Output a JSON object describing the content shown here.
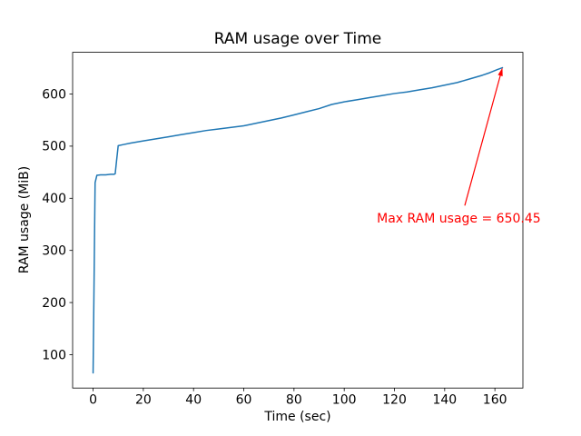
{
  "chart_data": {
    "type": "line",
    "title": "RAM usage over Time",
    "xlabel": "Time (sec)",
    "ylabel": "RAM usage (MiB)",
    "xlim": [
      -8.15,
      171.15
    ],
    "ylim": [
      36,
      680
    ],
    "xticks": [
      0,
      20,
      40,
      60,
      80,
      100,
      120,
      140,
      160
    ],
    "yticks": [
      100,
      200,
      300,
      400,
      500,
      600
    ],
    "grid": false,
    "legend": null,
    "background": "#ffffff",
    "series": [
      {
        "name": "RAM usage",
        "color": "#1f77b4",
        "x": [
          0,
          0.3,
          0.8,
          1.5,
          3,
          5,
          7,
          8.3,
          8.8,
          9.3,
          10,
          12,
          15,
          20,
          25,
          30,
          35,
          40,
          45,
          50,
          55,
          60,
          62,
          65,
          70,
          75,
          80,
          85,
          90,
          95,
          100,
          105,
          110,
          115,
          120,
          125,
          130,
          135,
          140,
          145,
          150,
          155,
          158,
          161,
          163
        ],
        "y": [
          65,
          200,
          430,
          444,
          445,
          445,
          446,
          446,
          447,
          470,
          501,
          503,
          506,
          510,
          514,
          518,
          522,
          526,
          530,
          533,
          536,
          539,
          541,
          544,
          549,
          554,
          560,
          566,
          572,
          580,
          585,
          589,
          593,
          597,
          601,
          604,
          608,
          612,
          617,
          622,
          629,
          636,
          641,
          647,
          650.45
        ]
      }
    ],
    "annotation": {
      "text": "Max RAM usage = 650.45",
      "max_value": 650.45,
      "color": "#ff0000",
      "point": [
        163,
        650.45
      ],
      "arrow_start": [
        148,
        386
      ],
      "text_anchor": [
        113,
        374
      ]
    }
  }
}
